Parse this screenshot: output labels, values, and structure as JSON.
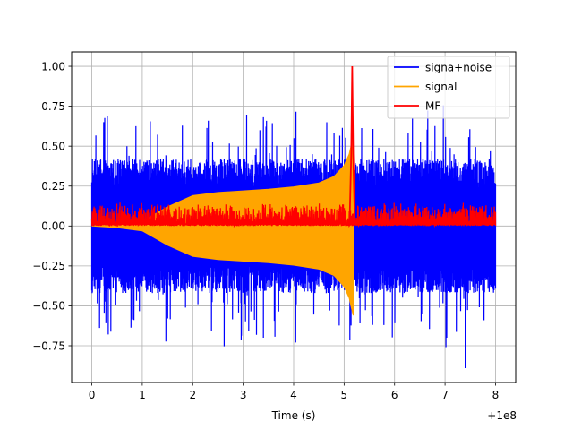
{
  "chart_data": {
    "type": "line",
    "title": "",
    "xlabel": "Time (s)",
    "ylabel": "",
    "x_offset_label": "+1e8",
    "xlim": [
      -0.4,
      8.4
    ],
    "ylim": [
      -0.98,
      1.09
    ],
    "grid": true,
    "legend_position": "top-right",
    "x_ticks": [
      0,
      1,
      2,
      3,
      4,
      5,
      6,
      7,
      8
    ],
    "x_tick_labels": [
      "0",
      "1",
      "2",
      "3",
      "4",
      "5",
      "6",
      "7",
      "8"
    ],
    "y_ticks": [
      -0.75,
      -0.5,
      -0.25,
      0.0,
      0.25,
      0.5,
      0.75,
      1.0
    ],
    "y_tick_labels": [
      "−0.75",
      "−0.50",
      "−0.25",
      "0.00",
      "0.25",
      "0.50",
      "0.75",
      "1.00"
    ],
    "series": [
      {
        "name": "signa+noise",
        "color": "#0000ff",
        "kind": "noisy-band",
        "x_range": [
          0,
          8
        ],
        "typical_amplitude": 0.35,
        "peak_high": 0.72,
        "peak_low": -0.89,
        "peak_low_at": 7.4
      },
      {
        "name": "signal",
        "color": "#ffa500",
        "kind": "chirp-envelope",
        "x_range": [
          0,
          5.18
        ],
        "envelope": [
          [
            0,
            0.0
          ],
          [
            0.5,
            0.01
          ],
          [
            1.0,
            0.03
          ],
          [
            1.5,
            0.12
          ],
          [
            2.0,
            0.19
          ],
          [
            2.5,
            0.21
          ],
          [
            3.0,
            0.22
          ],
          [
            3.5,
            0.23
          ],
          [
            4.0,
            0.245
          ],
          [
            4.5,
            0.27
          ],
          [
            4.8,
            0.31
          ],
          [
            5.0,
            0.38
          ],
          [
            5.1,
            0.45
          ],
          [
            5.15,
            0.52
          ],
          [
            5.18,
            0.56
          ]
        ]
      },
      {
        "name": "MF",
        "color": "#ff0000",
        "kind": "matched-filter",
        "x_range": [
          0,
          8
        ],
        "baseline": 0.05,
        "noise_amplitude": 0.12,
        "peak_x": 5.16,
        "peak_y": 1.0
      }
    ]
  }
}
